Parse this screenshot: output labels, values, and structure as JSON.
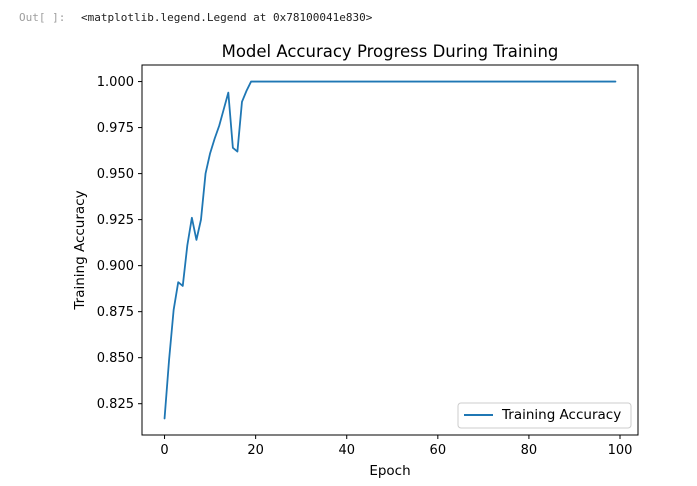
{
  "cell": {
    "prompt": "Out[ ]:",
    "output_text": "<matplotlib.legend.Legend at 0x78100041e830>"
  },
  "chart_data": {
    "type": "line",
    "title": "Model Accuracy Progress During Training",
    "xlabel": "Epoch",
    "ylabel": "Training Accuracy",
    "xlim": [
      -4.95,
      103.95
    ],
    "ylim": [
      0.808,
      1.009
    ],
    "xticks": [
      0,
      20,
      40,
      60,
      80,
      100
    ],
    "yticks": [
      0.825,
      0.85,
      0.875,
      0.9,
      0.925,
      0.95,
      0.975,
      1.0
    ],
    "xtick_labels": [
      "0",
      "20",
      "40",
      "60",
      "80",
      "100"
    ],
    "ytick_labels": [
      "0.825",
      "0.850",
      "0.875",
      "0.900",
      "0.925",
      "0.950",
      "0.975",
      "1.000"
    ],
    "grid": false,
    "legend_position": "lower right",
    "series": [
      {
        "name": "Training Accuracy",
        "color": "#1f77b4",
        "x": [
          0,
          1,
          2,
          3,
          4,
          5,
          6,
          7,
          8,
          9,
          10,
          11,
          12,
          13,
          14,
          15,
          16,
          17,
          18,
          19,
          20,
          21,
          22,
          23,
          24,
          25,
          26,
          27,
          28,
          29,
          30,
          31,
          32,
          33,
          34,
          35,
          36,
          37,
          38,
          39,
          40,
          41,
          42,
          43,
          44,
          45,
          46,
          47,
          48,
          49,
          50,
          51,
          52,
          53,
          54,
          55,
          56,
          57,
          58,
          59,
          60,
          61,
          62,
          63,
          64,
          65,
          66,
          67,
          68,
          69,
          70,
          71,
          72,
          73,
          74,
          75,
          76,
          77,
          78,
          79,
          80,
          81,
          82,
          83,
          84,
          85,
          86,
          87,
          88,
          89,
          90,
          91,
          92,
          93,
          94,
          95,
          96,
          97,
          98,
          99
        ],
        "y": [
          0.817,
          0.849,
          0.876,
          0.891,
          0.889,
          0.911,
          0.926,
          0.914,
          0.925,
          0.95,
          0.961,
          0.969,
          0.976,
          0.985,
          0.994,
          0.964,
          0.962,
          0.989,
          0.995,
          1.0,
          1.0,
          1.0,
          1.0,
          1.0,
          1.0,
          1.0,
          1.0,
          1.0,
          1.0,
          1.0,
          1.0,
          1.0,
          1.0,
          1.0,
          1.0,
          1.0,
          1.0,
          1.0,
          1.0,
          1.0,
          1.0,
          1.0,
          1.0,
          1.0,
          1.0,
          1.0,
          1.0,
          1.0,
          1.0,
          1.0,
          1.0,
          1.0,
          1.0,
          1.0,
          1.0,
          1.0,
          1.0,
          1.0,
          1.0,
          1.0,
          1.0,
          1.0,
          1.0,
          1.0,
          1.0,
          1.0,
          1.0,
          1.0,
          1.0,
          1.0,
          1.0,
          1.0,
          1.0,
          1.0,
          1.0,
          1.0,
          1.0,
          1.0,
          1.0,
          1.0,
          1.0,
          1.0,
          1.0,
          1.0,
          1.0,
          1.0,
          1.0,
          1.0,
          1.0,
          1.0,
          1.0,
          1.0,
          1.0,
          1.0,
          1.0,
          1.0,
          1.0,
          1.0,
          1.0,
          1.0
        ]
      }
    ]
  }
}
